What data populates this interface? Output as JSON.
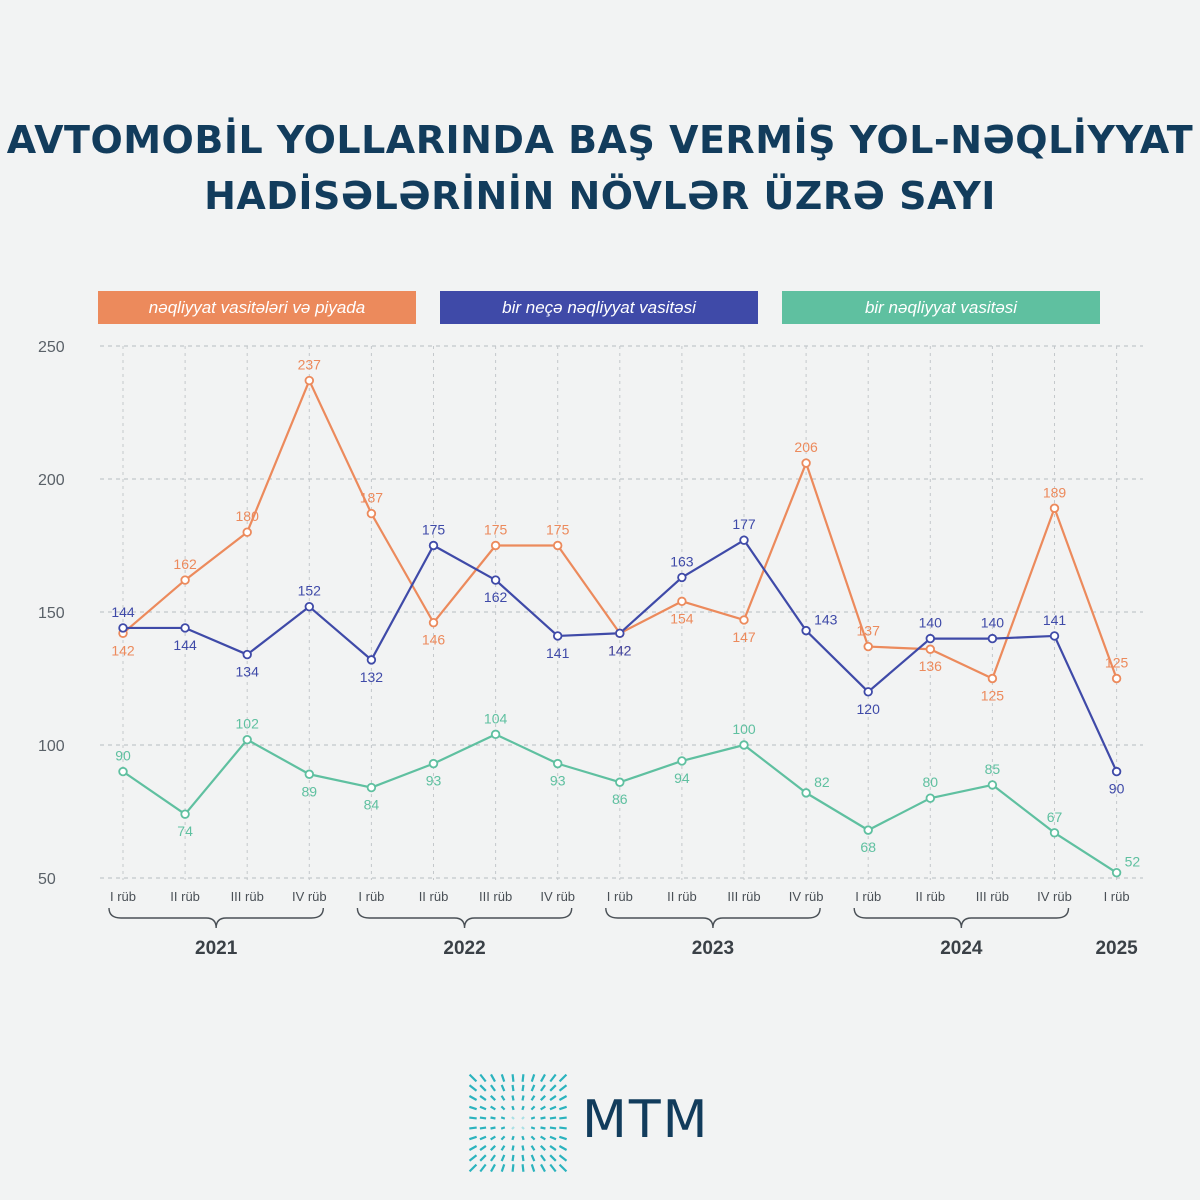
{
  "title_lines": [
    "AVTOMOBİL YOLLARINDA BAŞ VERMİŞ YOL-NƏQLİYYAT",
    "HADİSƏLƏRİNİN NÖVLƏR ÜZRƏ SAYI"
  ],
  "brand": {
    "name": "MTM",
    "color": "#123c5c"
  },
  "chart_data": {
    "type": "line",
    "ylim": [
      50,
      250
    ],
    "yticks": [
      50,
      100,
      150,
      200,
      250
    ],
    "grid": true,
    "legend_position": "top",
    "categories": [
      "I rüb",
      "II rüb",
      "III rüb",
      "IV rüb",
      "I rüb",
      "II rüb",
      "III rüb",
      "IV rüb",
      "I rüb",
      "II rüb",
      "III rüb",
      "IV rüb",
      "I rüb",
      "II rüb",
      "III rüb",
      "IV rüb",
      "I rüb"
    ],
    "years": [
      {
        "label": "2021",
        "from": 0,
        "to": 3
      },
      {
        "label": "2022",
        "from": 4,
        "to": 7
      },
      {
        "label": "2023",
        "from": 8,
        "to": 11
      },
      {
        "label": "2024",
        "from": 12,
        "to": 15
      },
      {
        "label": "2025",
        "from": 16,
        "to": 16
      }
    ],
    "series": [
      {
        "name": "nəqliyyat vasitələri və piyada",
        "color": "#ec8a5c",
        "values": [
          142,
          162,
          180,
          237,
          187,
          146,
          175,
          175,
          142,
          154,
          147,
          206,
          137,
          136,
          125,
          189,
          125
        ]
      },
      {
        "name": "bir neçə nəqliyyat vasitəsi",
        "color": "#3f4aa8",
        "values": [
          144,
          144,
          134,
          152,
          132,
          175,
          162,
          141,
          142,
          163,
          177,
          143,
          120,
          140,
          140,
          141,
          90
        ]
      },
      {
        "name": "bir nəqliyyat vasitəsi",
        "color": "#5fc0a0",
        "values": [
          90,
          74,
          102,
          89,
          84,
          93,
          104,
          93,
          86,
          94,
          100,
          82,
          68,
          80,
          85,
          67,
          52
        ]
      }
    ]
  }
}
